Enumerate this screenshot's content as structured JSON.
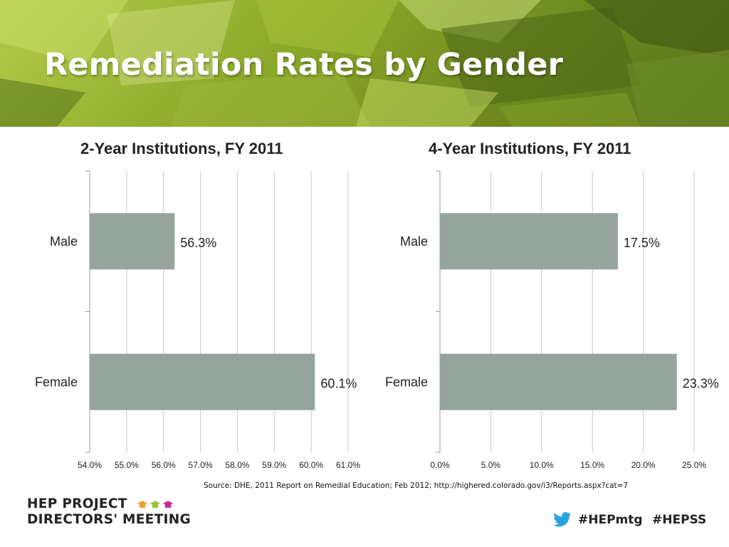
{
  "slide": {
    "title": "Remediation Rates by Gender",
    "source": "Source: DHE, 2011 Report on Remedial Education; Feb 2012;  http://highered.colorado.gov/i3/Reports.aspx?cat=7"
  },
  "footer": {
    "logo_line1": "HEP PROJECT",
    "logo_line2": "DIRECTORS' MEETING",
    "hashtag1": "#HEPmtg",
    "hashtag2": "#HEPSS",
    "icons": [
      "graduation-cap-icon",
      "twitter-bird-icon"
    ],
    "cap_colors": [
      "#f0a030",
      "#9cc43a",
      "#d0268c"
    ],
    "twitter_color": "#2aa3e0"
  },
  "colors": {
    "bar": "#95a49c",
    "grid": "#c8c8c8",
    "axis": "#999999",
    "text": "#222222"
  },
  "chart_data": [
    {
      "type": "bar",
      "orientation": "horizontal",
      "title": "2-Year Institutions, FY 2011",
      "categories": [
        "Male",
        "Female"
      ],
      "values": [
        56.3,
        60.1
      ],
      "data_labels": [
        "56.3%",
        "60.1%"
      ],
      "xlim": [
        54.0,
        61.0
      ],
      "ticks": [
        54.0,
        55.0,
        56.0,
        57.0,
        58.0,
        59.0,
        60.0,
        61.0
      ],
      "tick_labels": [
        "54.0%",
        "55.0%",
        "56.0%",
        "57.0%",
        "58.0%",
        "59.0%",
        "60.0%",
        "61.0%"
      ],
      "grid": true,
      "legend": "none"
    },
    {
      "type": "bar",
      "orientation": "horizontal",
      "title": "4-Year Institutions, FY 2011",
      "categories": [
        "Male",
        "Female"
      ],
      "values": [
        17.5,
        23.3
      ],
      "data_labels": [
        "17.5%",
        "23.3%"
      ],
      "xlim": [
        0.0,
        25.0
      ],
      "ticks": [
        0.0,
        5.0,
        10.0,
        15.0,
        20.0,
        25.0
      ],
      "tick_labels": [
        "0.0%",
        "5.0%",
        "10.0%",
        "15.0%",
        "20.0%",
        "25.0%"
      ],
      "grid": true,
      "legend": "none"
    }
  ]
}
